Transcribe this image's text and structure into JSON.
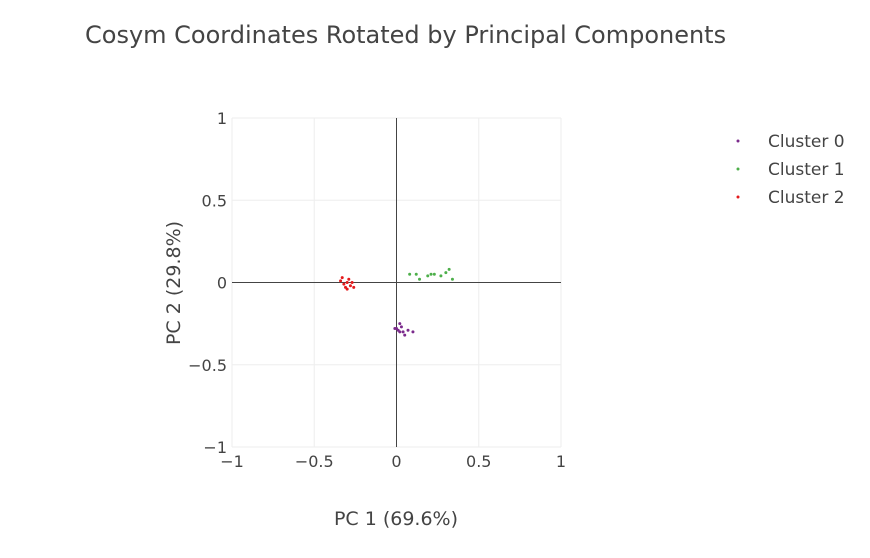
{
  "chart_data": {
    "type": "scatter",
    "title": "Cosym Coordinates Rotated by Principal Components",
    "xlabel": "PC 1 (69.6%)",
    "ylabel": "PC 2 (29.8%)",
    "xlim": [
      -1,
      1
    ],
    "ylim": [
      -1,
      1
    ],
    "xticks": [
      -1,
      -0.5,
      0,
      0.5,
      1
    ],
    "yticks": [
      -1,
      -0.5,
      0,
      0.5,
      1
    ],
    "xtick_labels": [
      "−1",
      "−0.5",
      "0",
      "0.5",
      "1"
    ],
    "ytick_labels": [
      "−1",
      "−0.5",
      "0",
      "0.5",
      "1"
    ],
    "grid": true,
    "zero_lines": true,
    "legend_position": "top-right",
    "series": [
      {
        "name": "Cluster 0",
        "color": "#7b2a8c",
        "points": [
          [
            0.0,
            -0.28
          ],
          [
            0.01,
            -0.29
          ],
          [
            0.02,
            -0.25
          ],
          [
            0.03,
            -0.27
          ],
          [
            0.04,
            -0.3
          ],
          [
            0.05,
            -0.32
          ],
          [
            0.07,
            -0.29
          ],
          [
            0.1,
            -0.3
          ],
          [
            -0.01,
            -0.28
          ],
          [
            0.02,
            -0.3
          ]
        ]
      },
      {
        "name": "Cluster 1",
        "color": "#4daf4a",
        "points": [
          [
            0.08,
            0.05
          ],
          [
            0.12,
            0.05
          ],
          [
            0.14,
            0.02
          ],
          [
            0.19,
            0.04
          ],
          [
            0.21,
            0.05
          ],
          [
            0.23,
            0.05
          ],
          [
            0.27,
            0.04
          ],
          [
            0.3,
            0.06
          ],
          [
            0.32,
            0.08
          ],
          [
            0.34,
            0.02
          ]
        ]
      },
      {
        "name": "Cluster 2",
        "color": "#e41a1c",
        "points": [
          [
            -0.34,
            0.01
          ],
          [
            -0.33,
            0.03
          ],
          [
            -0.32,
            -0.01
          ],
          [
            -0.31,
            -0.03
          ],
          [
            -0.3,
            0.0
          ],
          [
            -0.29,
            0.02
          ],
          [
            -0.28,
            -0.02
          ],
          [
            -0.27,
            0.0
          ],
          [
            -0.26,
            -0.03
          ],
          [
            -0.3,
            -0.04
          ]
        ]
      }
    ]
  }
}
